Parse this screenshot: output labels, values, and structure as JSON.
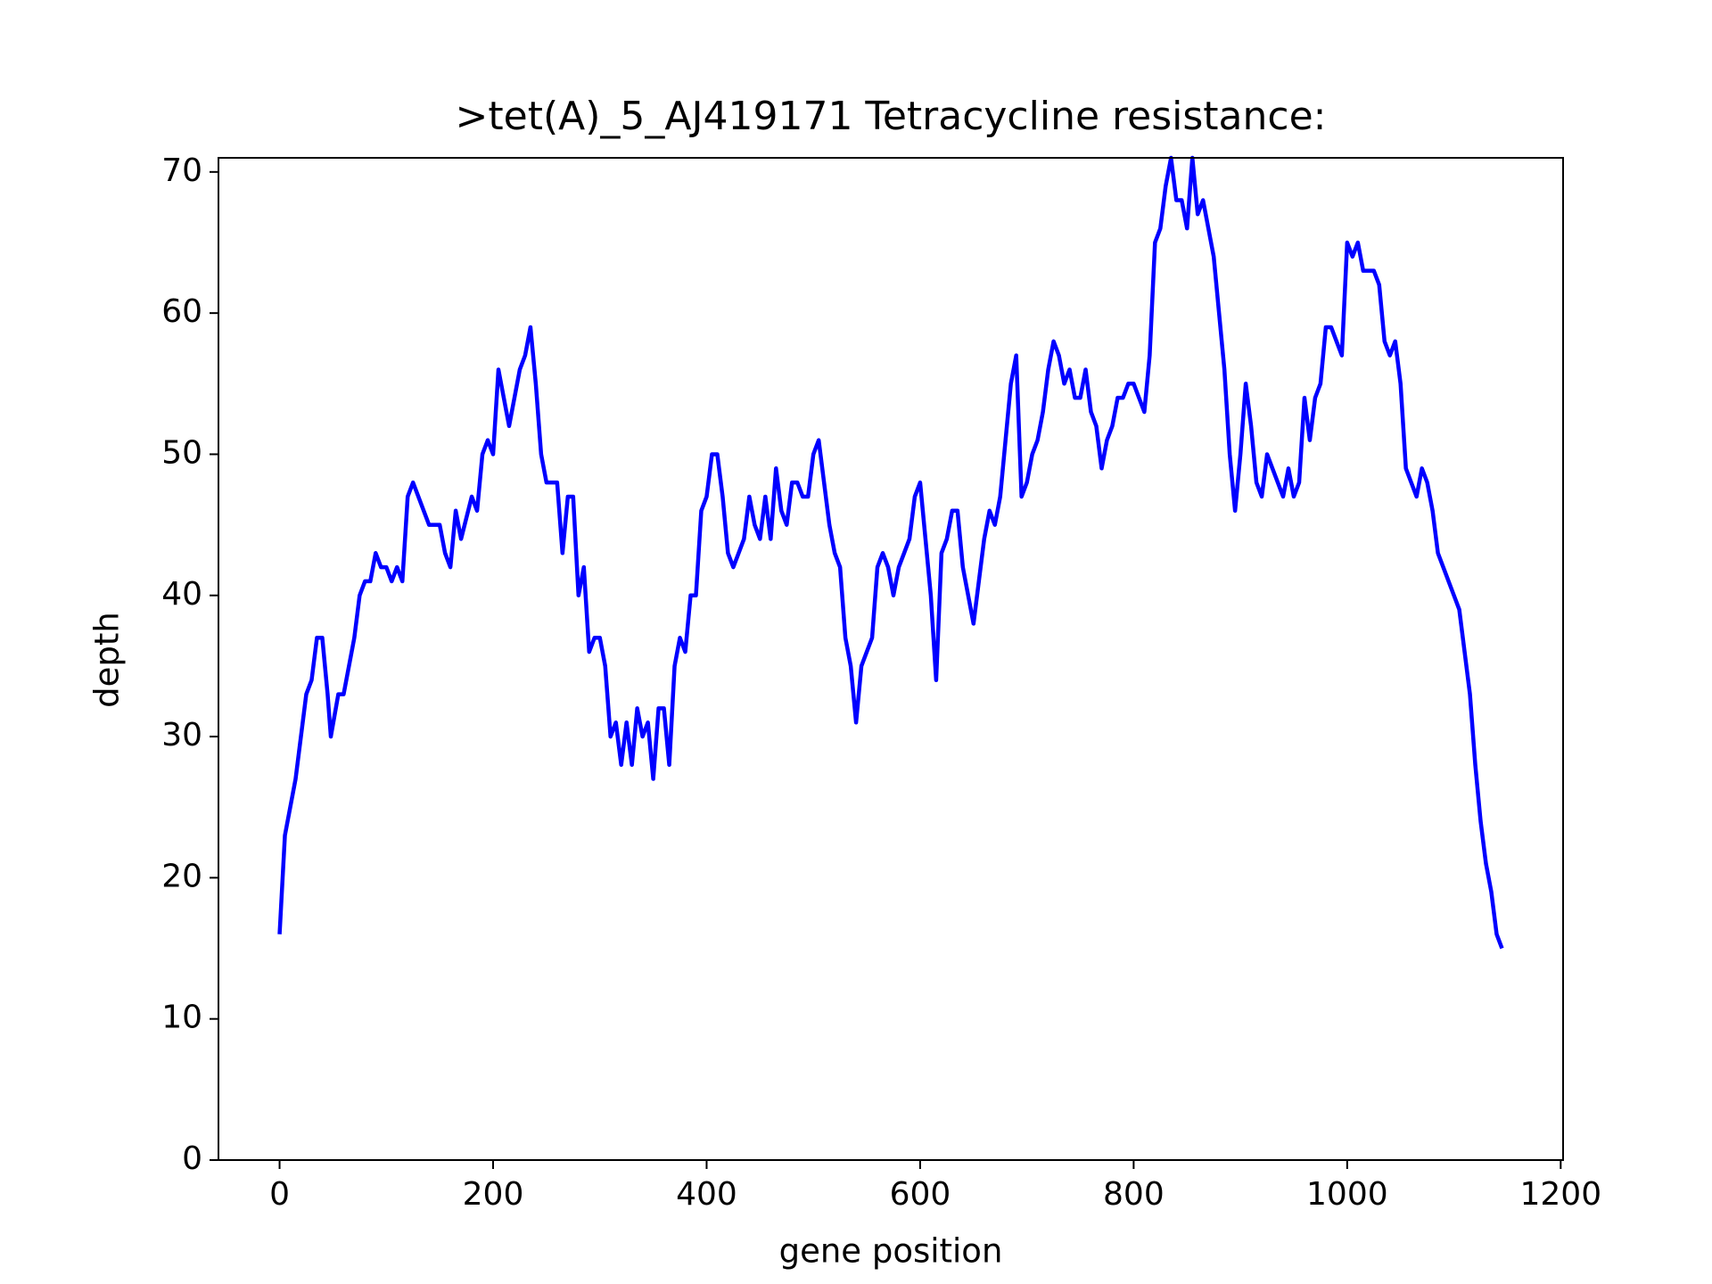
{
  "chart_data": {
    "type": "line",
    "title": ">tet(A)_5_AJ419171 Tetracycline resistance:",
    "x_label": "gene position",
    "y_label": "depth",
    "x": [
      0,
      5,
      10,
      15,
      20,
      25,
      30,
      35,
      40,
      45,
      48,
      55,
      60,
      65,
      70,
      75,
      80,
      85,
      90,
      95,
      100,
      105,
      110,
      115,
      120,
      125,
      130,
      140,
      150,
      155,
      160,
      165,
      170,
      180,
      185,
      190,
      195,
      200,
      205,
      210,
      215,
      220,
      225,
      230,
      235,
      240,
      245,
      250,
      260,
      265,
      270,
      275,
      280,
      285,
      290,
      295,
      300,
      305,
      310,
      315,
      320,
      325,
      330,
      335,
      340,
      345,
      350,
      355,
      360,
      365,
      370,
      375,
      380,
      385,
      390,
      395,
      400,
      405,
      410,
      415,
      420,
      425,
      430,
      435,
      440,
      445,
      450,
      455,
      460,
      465,
      470,
      475,
      480,
      485,
      490,
      495,
      500,
      505,
      510,
      515,
      520,
      525,
      530,
      535,
      540,
      545,
      550,
      555,
      560,
      565,
      570,
      575,
      580,
      585,
      590,
      595,
      600,
      605,
      610,
      615,
      620,
      625,
      630,
      635,
      640,
      645,
      650,
      655,
      660,
      665,
      670,
      675,
      680,
      685,
      690,
      695,
      700,
      705,
      710,
      715,
      720,
      725,
      730,
      735,
      740,
      745,
      750,
      755,
      760,
      765,
      770,
      775,
      780,
      785,
      790,
      795,
      800,
      805,
      810,
      815,
      820,
      825,
      830,
      835,
      840,
      845,
      850,
      855,
      860,
      865,
      870,
      875,
      880,
      885,
      890,
      895,
      900,
      905,
      910,
      915,
      920,
      925,
      930,
      935,
      940,
      945,
      950,
      955,
      960,
      965,
      970,
      975,
      980,
      985,
      990,
      995,
      1000,
      1005,
      1010,
      1015,
      1020,
      1025,
      1030,
      1035,
      1040,
      1045,
      1050,
      1055,
      1060,
      1065,
      1070,
      1075,
      1080,
      1085,
      1090,
      1095,
      1100,
      1105,
      1110,
      1115,
      1120,
      1125,
      1130,
      1135,
      1140,
      1145
    ],
    "series": [
      {
        "color": "#0000ff",
        "values": [
          16,
          23,
          25,
          27,
          30,
          33,
          34,
          37,
          37,
          33,
          30,
          33,
          33,
          35,
          37,
          40,
          41,
          41,
          43,
          42,
          42,
          41,
          42,
          41,
          47,
          48,
          47,
          45,
          45,
          43,
          42,
          46,
          44,
          47,
          46,
          50,
          51,
          50,
          56,
          54,
          52,
          54,
          56,
          57,
          59,
          55,
          50,
          48,
          48,
          43,
          47,
          47,
          40,
          42,
          36,
          37,
          37,
          35,
          30,
          31,
          28,
          31,
          28,
          32,
          30,
          31,
          27,
          32,
          32,
          28,
          35,
          37,
          36,
          40,
          40,
          46,
          47,
          50,
          50,
          47,
          43,
          42,
          43,
          44,
          47,
          45,
          44,
          47,
          44,
          49,
          46,
          45,
          48,
          48,
          47,
          47,
          50,
          51,
          48,
          45,
          43,
          42,
          37,
          35,
          31,
          35,
          36,
          37,
          42,
          43,
          42,
          40,
          42,
          43,
          44,
          47,
          48,
          44,
          40,
          34,
          43,
          44,
          46,
          46,
          42,
          40,
          38,
          41,
          44,
          46,
          45,
          47,
          51,
          55,
          57,
          47,
          48,
          50,
          51,
          53,
          56,
          58,
          57,
          55,
          56,
          54,
          54,
          56,
          53,
          52,
          49,
          51,
          52,
          54,
          54,
          55,
          55,
          54,
          53,
          57,
          65,
          66,
          69,
          71,
          68,
          68,
          66,
          71,
          67,
          68,
          66,
          64,
          60,
          56,
          50,
          46,
          50,
          55,
          52,
          48,
          47,
          50,
          49,
          48,
          47,
          49,
          47,
          48,
          54,
          51,
          54,
          55,
          59,
          59,
          58,
          57,
          65,
          64,
          65,
          63,
          63,
          63,
          62,
          58,
          57,
          58,
          55,
          49,
          48,
          47,
          49,
          48,
          46,
          43,
          42,
          41,
          40,
          39,
          36,
          33,
          28,
          24,
          21,
          19,
          16,
          15
        ]
      }
    ],
    "xlim": [
      -57.25,
      1202.25
    ],
    "xticks": [
      0,
      200,
      400,
      600,
      800,
      1000,
      1200
    ],
    "ylim": [
      0,
      71
    ],
    "yticks": [
      0,
      10,
      20,
      30,
      40,
      50,
      60,
      70
    ]
  }
}
